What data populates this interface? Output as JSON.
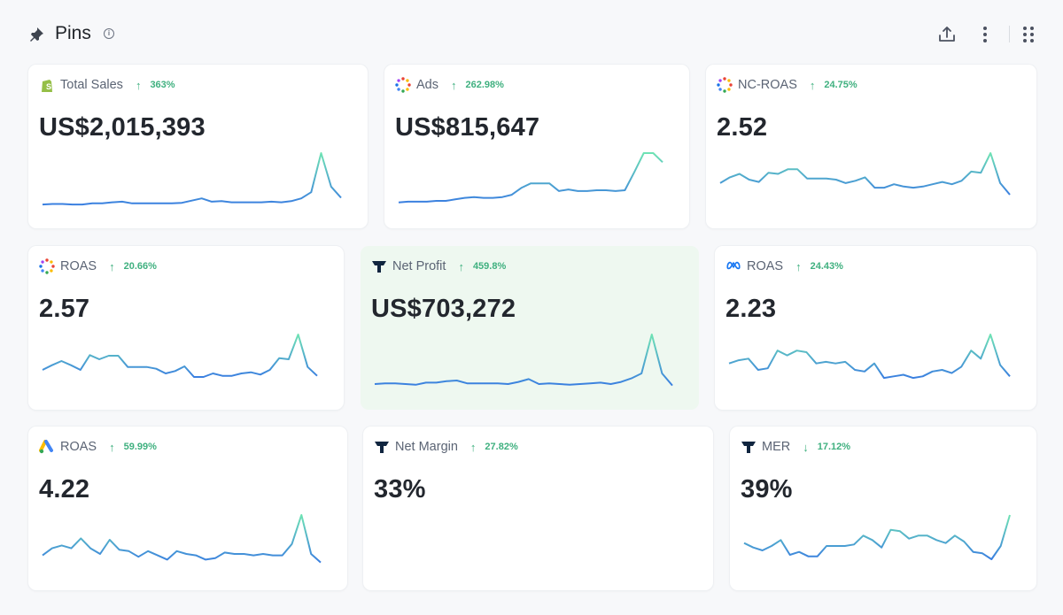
{
  "header": {
    "title": "Pins",
    "info": "i"
  },
  "toolbar": {
    "share": "share-icon",
    "more": "more-vertical-icon",
    "grid": "grid-icon"
  },
  "colors": {
    "accent_green": "#3fb07f",
    "line_top": "#6fe3b4",
    "line_bottom": "#3a7fe0"
  },
  "cards": [
    {
      "id": "total-sales",
      "icon": "shopify",
      "label": "Total Sales",
      "dir": "up",
      "delta": "363%",
      "value": "US$2,015,393",
      "spark": [
        3,
        4,
        4,
        3,
        3,
        5,
        5,
        7,
        8,
        5,
        5,
        5,
        5,
        5,
        6,
        10,
        14,
        8,
        9,
        7,
        7,
        7,
        7,
        8,
        7,
        9,
        14,
        25,
        95,
        35,
        15
      ]
    },
    {
      "id": "ads",
      "icon": "dots",
      "label": "Ads",
      "dir": "up",
      "delta": "262.98%",
      "value": "US$815,647",
      "spark": [
        5,
        6,
        6,
        6,
        7,
        7,
        9,
        11,
        12,
        11,
        11,
        12,
        15,
        24,
        30,
        30,
        30,
        20,
        22,
        20,
        20,
        21,
        21,
        20,
        21,
        45,
        70,
        70,
        58
      ]
    },
    {
      "id": "nc-roas",
      "icon": "dots",
      "label": "NC-ROAS",
      "dir": "up",
      "delta": "24.75%",
      "value": "2.52",
      "spark": [
        40,
        50,
        56,
        46,
        42,
        58,
        56,
        64,
        64,
        48,
        48,
        48,
        46,
        40,
        44,
        50,
        32,
        32,
        38,
        34,
        32,
        34,
        38,
        42,
        38,
        44,
        60,
        58,
        92,
        40,
        20
      ]
    },
    {
      "id": "roas-1",
      "icon": "dots",
      "label": "ROAS",
      "dir": "up",
      "delta": "20.66%",
      "value": "2.57",
      "spark": [
        30,
        38,
        45,
        38,
        30,
        55,
        48,
        54,
        54,
        35,
        35,
        35,
        32,
        24,
        28,
        36,
        18,
        18,
        24,
        20,
        20,
        24,
        26,
        22,
        30,
        50,
        48,
        90,
        35,
        20
      ]
    },
    {
      "id": "net-profit",
      "icon": "triple",
      "label": "Net Profit",
      "dir": "up",
      "delta": "459.8%",
      "value": "US$703,272",
      "spark": [
        5,
        6,
        6,
        5,
        4,
        7,
        7,
        9,
        10,
        6,
        6,
        6,
        6,
        5,
        8,
        12,
        5,
        6,
        5,
        4,
        5,
        6,
        7,
        5,
        8,
        13,
        20,
        75,
        20,
        3
      ]
    },
    {
      "id": "roas-meta",
      "icon": "meta",
      "label": "ROAS",
      "dir": "up",
      "delta": "24.43%",
      "value": "2.23",
      "spark": [
        30,
        34,
        36,
        22,
        24,
        46,
        40,
        46,
        44,
        30,
        32,
        30,
        32,
        22,
        20,
        30,
        12,
        14,
        16,
        12,
        14,
        20,
        22,
        18,
        26,
        46,
        36,
        66,
        28,
        14
      ]
    },
    {
      "id": "roas-google",
      "icon": "google",
      "label": "ROAS",
      "dir": "up",
      "delta": "59.99%",
      "value": "4.22",
      "spark": [
        18,
        28,
        32,
        28,
        42,
        28,
        20,
        40,
        26,
        24,
        16,
        24,
        18,
        12,
        24,
        20,
        18,
        12,
        14,
        22,
        20,
        20,
        18,
        20,
        18,
        18,
        34,
        75,
        20,
        8
      ]
    },
    {
      "id": "net-margin",
      "icon": "triple",
      "label": "Net Margin",
      "dir": "up",
      "delta": "27.82%",
      "value": "33%",
      "spark": []
    },
    {
      "id": "mer",
      "icon": "triple",
      "label": "MER",
      "dir": "down",
      "delta": "17.12%",
      "value": "39%",
      "spark": [
        34,
        28,
        24,
        30,
        38,
        18,
        22,
        16,
        16,
        30,
        30,
        30,
        32,
        44,
        38,
        28,
        52,
        50,
        40,
        44,
        44,
        38,
        34,
        44,
        36,
        22,
        20,
        12,
        30,
        72
      ]
    }
  ]
}
